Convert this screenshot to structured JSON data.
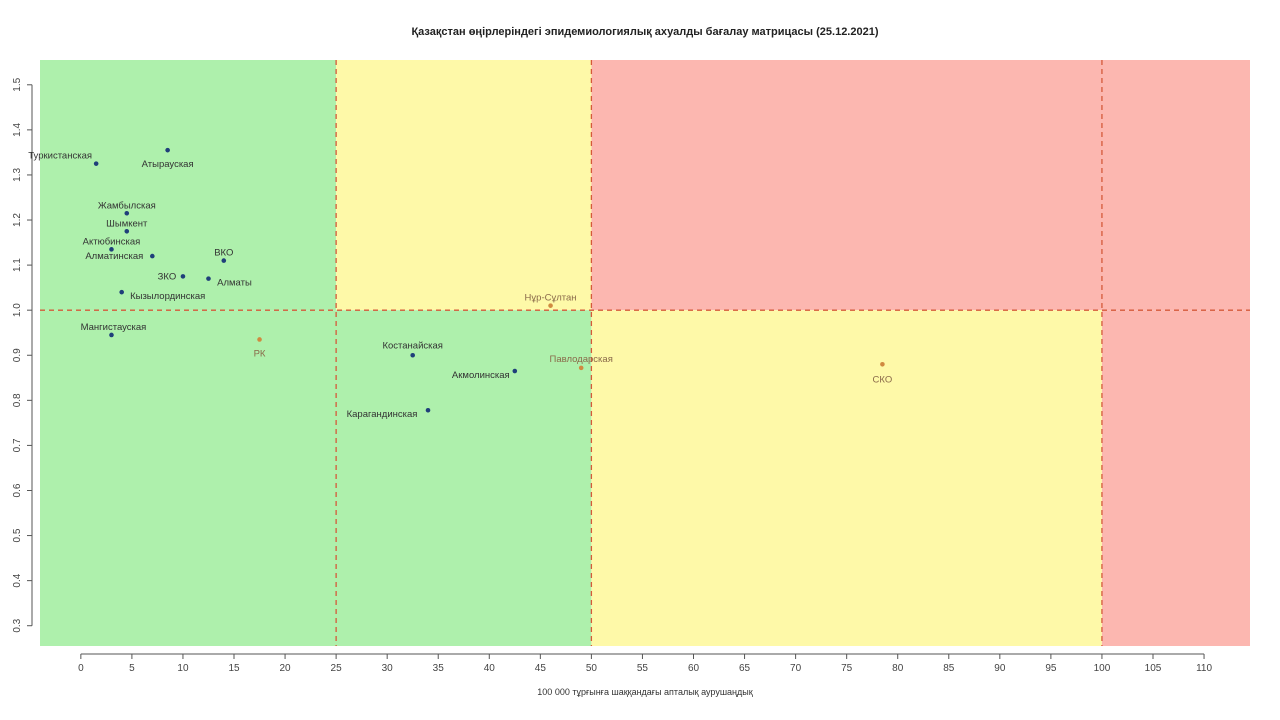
{
  "chart_data": {
    "type": "scatter",
    "title": "Қазақстан өңірлеріндегі эпидемиологиялық ахуалды бағалау матрицасы  (25.12.2021)",
    "xlabel": "100 000 тұрғынға шаққандағы апталық аурушаңдық",
    "ylabel": "",
    "xlim": [
      -4,
      114.5
    ],
    "ylim": [
      0.255,
      1.555
    ],
    "x_ticks": [
      0,
      5,
      10,
      15,
      20,
      25,
      30,
      35,
      40,
      45,
      50,
      55,
      60,
      65,
      70,
      75,
      80,
      85,
      90,
      95,
      100,
      105,
      110
    ],
    "y_ticks": [
      0.3,
      0.4,
      0.5,
      0.6,
      0.7,
      0.8,
      0.9,
      1.0,
      1.1,
      1.2,
      1.3,
      1.4,
      1.5
    ],
    "grid": false,
    "zones": [
      {
        "color": "green",
        "x": [
          -4,
          25
        ],
        "y": [
          1.0,
          1.555
        ]
      },
      {
        "color": "yellow",
        "x": [
          25,
          50
        ],
        "y": [
          1.0,
          1.555
        ]
      },
      {
        "color": "red",
        "x": [
          50,
          114.5
        ],
        "y": [
          1.0,
          1.555
        ]
      },
      {
        "color": "green",
        "x": [
          -4,
          50
        ],
        "y": [
          0.255,
          1.0
        ]
      },
      {
        "color": "yellow",
        "x": [
          50,
          100
        ],
        "y": [
          0.255,
          1.0
        ]
      },
      {
        "color": "red",
        "x": [
          100,
          114.5
        ],
        "y": [
          0.255,
          1.0
        ]
      }
    ],
    "threshold_lines": {
      "x": [
        25,
        50,
        100
      ],
      "y": [
        1.0
      ]
    },
    "colors": {
      "green": "#aef0ac",
      "yellow": "#fef9a8",
      "red": "#fcb7b0",
      "line": "#d55a3a",
      "point": "#1f3f7a",
      "point_alt": "#d08a40"
    },
    "points": [
      {
        "label": "Туркистанская",
        "x": 1.5,
        "y": 1.325
      },
      {
        "label": "Атырауская",
        "x": 8.5,
        "y": 1.355
      },
      {
        "label": "Жамбылская",
        "x": 4.5,
        "y": 1.215
      },
      {
        "label": "Шымкент",
        "x": 4.5,
        "y": 1.175
      },
      {
        "label": "Актюбинская",
        "x": 3.0,
        "y": 1.135
      },
      {
        "label": "Алматинская",
        "x": 7.0,
        "y": 1.12
      },
      {
        "label": "ВКО",
        "x": 14.0,
        "y": 1.11
      },
      {
        "label": "ЗКО",
        "x": 10.0,
        "y": 1.075
      },
      {
        "label": "Алматы",
        "x": 12.5,
        "y": 1.07
      },
      {
        "label": "Кызылординская",
        "x": 4.0,
        "y": 1.04
      },
      {
        "label": "Нұр-Сұлтан",
        "x": 46.0,
        "y": 1.01
      },
      {
        "label": "Мангистауская",
        "x": 3.0,
        "y": 0.945
      },
      {
        "label": "РК",
        "x": 17.5,
        "y": 0.935
      },
      {
        "label": "Костанайская",
        "x": 32.5,
        "y": 0.9
      },
      {
        "label": "Акмолинская",
        "x": 42.5,
        "y": 0.865
      },
      {
        "label": "Павлодарская",
        "x": 49.0,
        "y": 0.872
      },
      {
        "label": "СКО",
        "x": 78.5,
        "y": 0.88
      },
      {
        "label": "Карагандинская",
        "x": 34.0,
        "y": 0.778
      }
    ]
  }
}
